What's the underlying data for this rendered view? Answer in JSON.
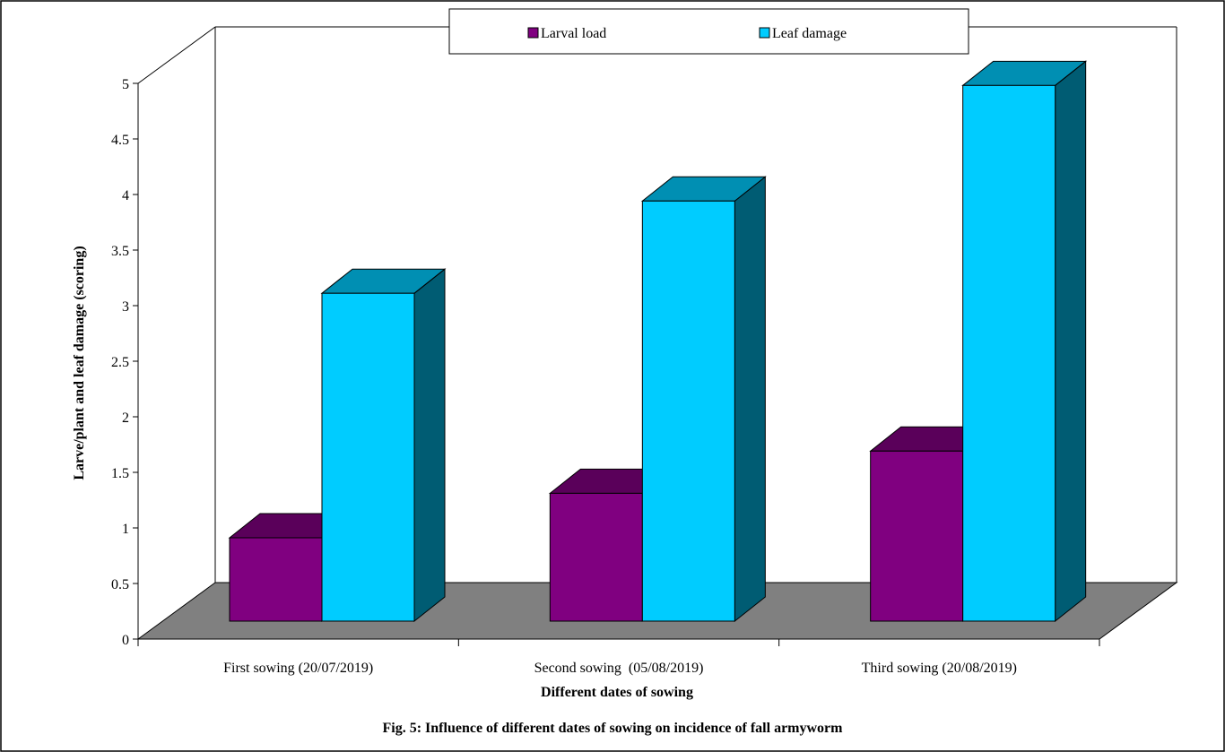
{
  "chart_data": {
    "type": "bar",
    "style": "3d-clustered-column",
    "categories": [
      "First sowing (20/07/2019)",
      "Second sowing  (05/08/2019)",
      "Third sowing (20/08/2019)"
    ],
    "series": [
      {
        "name": "Larval load",
        "values": [
          0.75,
          1.15,
          1.53
        ],
        "color": "#800080"
      },
      {
        "name": "Leaf damage",
        "values": [
          2.95,
          3.78,
          4.82
        ],
        "color": "#00CCFF"
      }
    ],
    "ylim": [
      0,
      5
    ],
    "yticks": [
      "0",
      "0.5",
      "1",
      "1.5",
      "2",
      "2.5",
      "3",
      "3.5",
      "4",
      "4.5",
      "5"
    ],
    "xlabel": "Different dates of sowing",
    "ylabel": "Larve/plant and leaf damage (scoring)",
    "legend_position": "top",
    "grid": false,
    "floor_color": "#808080"
  },
  "caption": "Fig. 5: Influence of different dates of sowing on incidence of fall armyworm"
}
